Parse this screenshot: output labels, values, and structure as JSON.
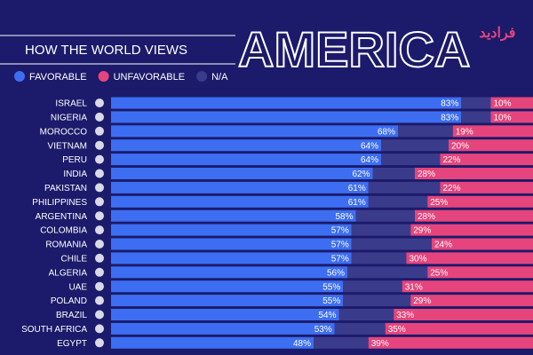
{
  "chart_data": {
    "type": "bar",
    "orientation": "horizontal",
    "stacked": true,
    "subtitle": "HOW THE WORLD VIEWS",
    "title": "AMERICA",
    "watermark": "فرادید",
    "categories": [
      "ISRAEL",
      "NIGERIA",
      "MOROCCO",
      "VIETNAM",
      "PERU",
      "INDIA",
      "PAKISTAN",
      "PHILIPPINES",
      "ARGENTINA",
      "COLOMBIA",
      "ROMANIA",
      "CHILE",
      "ALGERIA",
      "UAE",
      "POLAND",
      "BRAZIL",
      "SOUTH AFRICA",
      "EGYPT"
    ],
    "xlim": [
      0,
      100
    ],
    "series": [
      {
        "name": "FAVORABLE",
        "color": "#3d6ef2",
        "values": [
          83,
          83,
          68,
          64,
          64,
          62,
          61,
          61,
          58,
          57,
          57,
          57,
          56,
          55,
          55,
          54,
          53,
          48
        ],
        "value_labels": [
          "83%",
          "83%",
          "68%",
          "64%",
          "64%",
          "62%",
          "61%",
          "61%",
          "58%",
          "57%",
          "57%",
          "57%",
          "56%",
          "55%",
          "55%",
          "54%",
          "53%",
          "48%"
        ]
      },
      {
        "name": "N/A",
        "color": "#3b3b8c",
        "values": [
          7,
          7,
          13,
          16,
          14,
          10,
          17,
          14,
          14,
          14,
          19,
          13,
          19,
          14,
          16,
          13,
          12,
          13
        ]
      },
      {
        "name": "UNFAVORABLE",
        "color": "#e5457c",
        "values": [
          10,
          10,
          19,
          20,
          22,
          28,
          22,
          25,
          28,
          29,
          24,
          30,
          25,
          31,
          29,
          33,
          35,
          39
        ],
        "value_labels": [
          "10%",
          "10%",
          "19%",
          "20%",
          "22%",
          "28%",
          "22%",
          "25%",
          "28%",
          "29%",
          "24%",
          "30%",
          "25%",
          "31%",
          "29%",
          "33%",
          "35%",
          "39%"
        ]
      }
    ],
    "legend_order": [
      0,
      2,
      1
    ]
  }
}
